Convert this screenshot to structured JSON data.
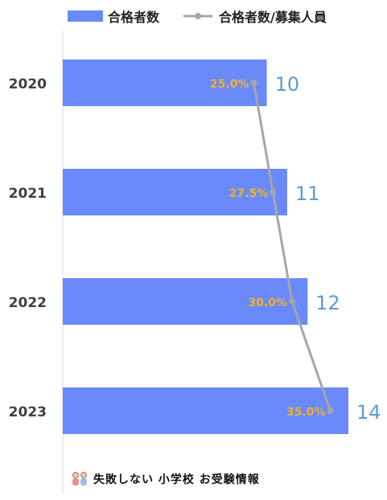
{
  "legend": {
    "bar_label": "合格者数",
    "line_label": "合格者数/募集人員"
  },
  "footer": {
    "logo_text": "失敗しない 小学校 お受験情報"
  },
  "colors": {
    "bar": "#6a89fb",
    "line": "#a6a6a6",
    "bar_value": "#5b9bd5",
    "line_value": "#f0b323",
    "axis": "#d9d9d9",
    "category_text": "#404040"
  },
  "chart_data": {
    "type": "bar",
    "orientation": "horizontal",
    "categories": [
      "2020",
      "2021",
      "2022",
      "2023"
    ],
    "series": [
      {
        "name": "合格者数",
        "type": "bar",
        "values": [
          10,
          11,
          12,
          14
        ]
      },
      {
        "name": "合格者数/募集人員",
        "type": "line",
        "values": [
          25.0,
          27.5,
          30.0,
          35.0
        ],
        "labels": [
          "25.0%",
          "27.5%",
          "30.0%",
          "35.0%"
        ]
      }
    ],
    "xlim": [
      0,
      14
    ],
    "line_xlim": [
      0,
      40
    ],
    "grid": false,
    "legend_position": "top"
  }
}
